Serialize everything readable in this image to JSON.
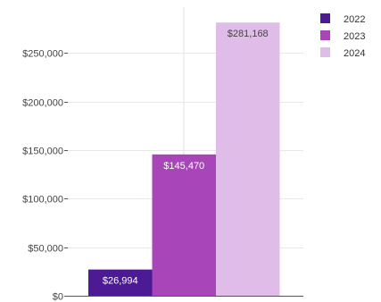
{
  "chart_data": {
    "type": "bar",
    "title": "",
    "xlabel": "",
    "ylabel": "",
    "ylim": [
      0,
      300000
    ],
    "yticks": [
      0,
      50000,
      100000,
      150000,
      200000,
      250000
    ],
    "ytick_labels": [
      "$0",
      "$50,000",
      "$100,000",
      "$150,000",
      "$200,000",
      "$250,000"
    ],
    "grid": true,
    "legend_position": "top-right",
    "series": [
      {
        "name": "2022",
        "value": 26994,
        "label": "$26,994",
        "color": "#4b1a94",
        "label_color": "#ffffff"
      },
      {
        "name": "2023",
        "value": 145470,
        "label": "$145,470",
        "color": "#a846b9",
        "label_color": "#ffffff"
      },
      {
        "name": "2024",
        "value": 281168,
        "label": "$281,168",
        "color": "#e0bde8",
        "label_color": "#444444"
      }
    ]
  }
}
